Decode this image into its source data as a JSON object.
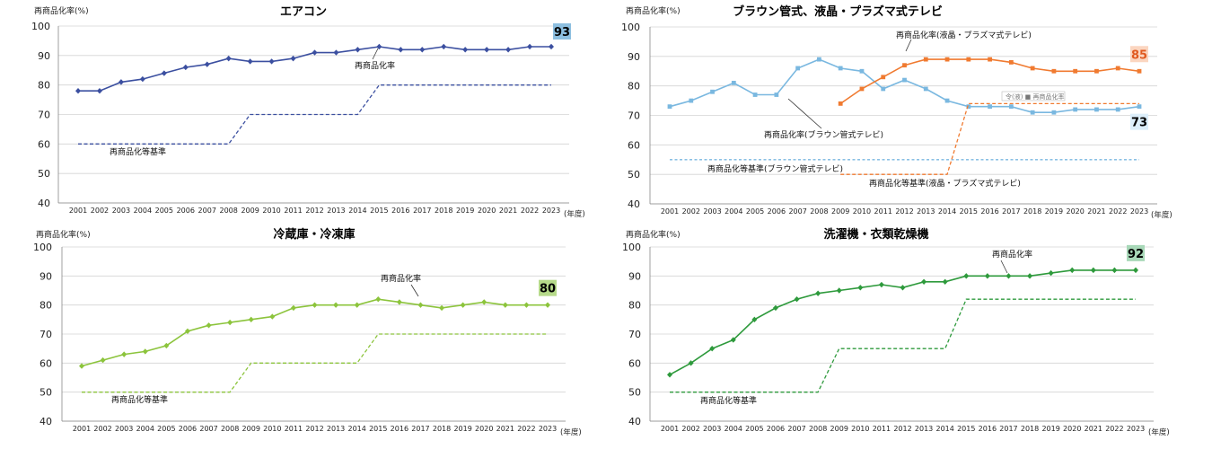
{
  "chart_data": [
    {
      "type": "line",
      "title": "エアコン",
      "ylabel": "再商品化率(%)",
      "xlabel": "(年度)",
      "ylim": [
        40,
        100
      ],
      "yticks": [
        40,
        50,
        60,
        70,
        80,
        90,
        100
      ],
      "categories": [
        "2001",
        "2002",
        "2003",
        "2004",
        "2005",
        "2006",
        "2007",
        "2008",
        "2009",
        "2010",
        "2011",
        "2012",
        "2013",
        "2014",
        "2015",
        "2016",
        "2017",
        "2018",
        "2019",
        "2020",
        "2021",
        "2022",
        "2023"
      ],
      "grid": true,
      "series": [
        {
          "name": "再商品化率",
          "style": "solid-marker",
          "color": "#3b4fa0",
          "values": [
            78,
            78,
            81,
            82,
            84,
            86,
            87,
            89,
            88,
            88,
            89,
            91,
            91,
            92,
            93,
            92,
            92,
            93,
            92,
            92,
            92,
            93,
            93
          ]
        },
        {
          "name": "再商品化等基準",
          "style": "dashed",
          "color": "#3b4fa0",
          "values": [
            60,
            60,
            60,
            60,
            60,
            60,
            60,
            60,
            70,
            70,
            70,
            70,
            70,
            70,
            80,
            80,
            80,
            80,
            80,
            80,
            80,
            80,
            80
          ]
        }
      ],
      "badges": [
        {
          "text": "93",
          "color": "#8dbfe0"
        }
      ]
    },
    {
      "type": "line",
      "title": "ブラウン管式、液晶・プラズマ式テレビ",
      "ylabel": "再商品化率(%)",
      "xlabel": "(年度)",
      "ylim": [
        40,
        100
      ],
      "yticks": [
        40,
        50,
        60,
        70,
        80,
        90,
        100
      ],
      "categories": [
        "2001",
        "2002",
        "2003",
        "2004",
        "2005",
        "2006",
        "2007",
        "2008",
        "2009",
        "2010",
        "2011",
        "2012",
        "2013",
        "2014",
        "2015",
        "2016",
        "2017",
        "2018",
        "2019",
        "2020",
        "2021",
        "2022",
        "2023"
      ],
      "grid": true,
      "series": [
        {
          "name": "再商品化率(ブラウン管式テレビ)",
          "style": "solid-marker",
          "color": "#7ab8e0",
          "values": [
            73,
            75,
            78,
            81,
            77,
            77,
            86,
            89,
            86,
            85,
            79,
            82,
            79,
            75,
            73,
            73,
            73,
            71,
            71,
            72,
            72,
            72,
            73
          ]
        },
        {
          "name": "再商品化率(液晶・プラズマ式テレビ)",
          "style": "solid-marker",
          "color": "#f07a30",
          "values": [
            null,
            null,
            null,
            null,
            null,
            null,
            null,
            null,
            74,
            79,
            83,
            87,
            89,
            89,
            89,
            89,
            88,
            86,
            85,
            85,
            85,
            86,
            85
          ]
        },
        {
          "name": "再商品化等基準(ブラウン管式テレビ)",
          "style": "dotted",
          "color": "#7ab8e0",
          "values": [
            55,
            55,
            55,
            55,
            55,
            55,
            55,
            55,
            55,
            55,
            55,
            55,
            55,
            55,
            55,
            55,
            55,
            55,
            55,
            55,
            55,
            55,
            55
          ]
        },
        {
          "name": "再商品化等基準(液晶・プラズマ式テレビ)",
          "style": "dashed",
          "color": "#f07a30",
          "values": [
            null,
            null,
            null,
            null,
            null,
            null,
            null,
            null,
            50,
            50,
            50,
            50,
            50,
            50,
            74,
            74,
            74,
            74,
            74,
            74,
            74,
            74,
            74
          ]
        }
      ],
      "badges": [
        {
          "text": "85",
          "color": "#fbd6c0"
        },
        {
          "text": "73",
          "color": "#dceefa"
        }
      ],
      "small_note": "令(液) ■ 再商品化率"
    },
    {
      "type": "line",
      "title": "冷蔵庫・冷凍庫",
      "ylabel": "再商品化率(%)",
      "xlabel": "(年度)",
      "ylim": [
        40,
        100
      ],
      "yticks": [
        40,
        50,
        60,
        70,
        80,
        90,
        100
      ],
      "categories": [
        "2001",
        "2002",
        "2003",
        "2004",
        "2005",
        "2006",
        "2007",
        "2008",
        "2009",
        "2010",
        "2011",
        "2012",
        "2013",
        "2014",
        "2015",
        "2016",
        "2017",
        "2018",
        "2019",
        "2020",
        "2021",
        "2022",
        "2023"
      ],
      "grid": true,
      "series": [
        {
          "name": "再商品化率",
          "style": "solid-marker",
          "color": "#8cc43c",
          "values": [
            59,
            61,
            63,
            64,
            66,
            71,
            73,
            74,
            75,
            76,
            79,
            80,
            80,
            80,
            82,
            81,
            80,
            79,
            80,
            81,
            80,
            80,
            80
          ]
        },
        {
          "name": "再商品化等基準",
          "style": "dashed",
          "color": "#8cc43c",
          "values": [
            50,
            50,
            50,
            50,
            50,
            50,
            50,
            50,
            60,
            60,
            60,
            60,
            60,
            60,
            70,
            70,
            70,
            70,
            70,
            70,
            70,
            70,
            70
          ]
        }
      ],
      "badges": [
        {
          "text": "80",
          "color": "#b6da8a"
        }
      ]
    },
    {
      "type": "line",
      "title": "洗濯機・衣類乾燥機",
      "ylabel": "再商品化率(%)",
      "xlabel": "(年度)",
      "ylim": [
        40,
        100
      ],
      "yticks": [
        40,
        50,
        60,
        70,
        80,
        90,
        100
      ],
      "categories": [
        "2001",
        "2002",
        "2003",
        "2004",
        "2005",
        "2006",
        "2007",
        "2008",
        "2009",
        "2010",
        "2011",
        "2012",
        "2013",
        "2014",
        "2015",
        "2016",
        "2017",
        "2018",
        "2019",
        "2020",
        "2021",
        "2022",
        "2023"
      ],
      "grid": true,
      "series": [
        {
          "name": "再商品化率",
          "style": "solid-marker",
          "color": "#2e9a3c",
          "values": [
            56,
            60,
            65,
            68,
            75,
            79,
            82,
            84,
            85,
            86,
            87,
            86,
            88,
            88,
            90,
            90,
            90,
            90,
            91,
            92,
            92,
            92,
            92
          ]
        },
        {
          "name": "再商品化等基準",
          "style": "dashed",
          "color": "#2e9a3c",
          "values": [
            50,
            50,
            50,
            50,
            50,
            50,
            50,
            50,
            65,
            65,
            65,
            65,
            65,
            65,
            82,
            82,
            82,
            82,
            82,
            82,
            82,
            82,
            82
          ]
        }
      ],
      "badges": [
        {
          "text": "92",
          "color": "#a8d8b8"
        }
      ]
    }
  ]
}
